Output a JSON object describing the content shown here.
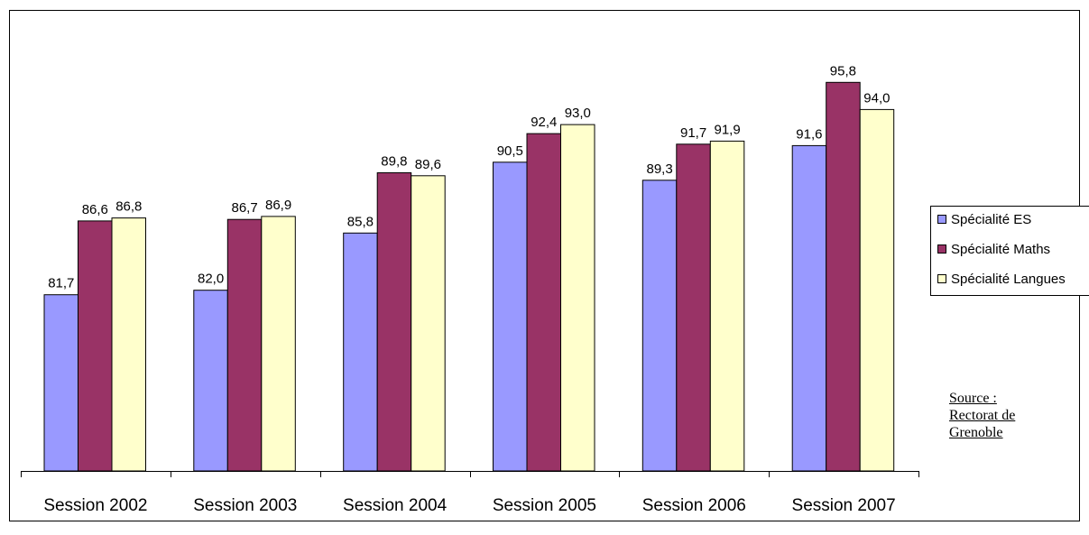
{
  "chart_data": {
    "type": "bar",
    "categories": [
      "Session 2002",
      "Session 2003",
      "Session 2004",
      "Session 2005",
      "Session 2006",
      "Session 2007"
    ],
    "series": [
      {
        "name": "Spécialité ES",
        "color": "#9999FF",
        "values": [
          81.7,
          82.0,
          85.8,
          90.5,
          89.3,
          91.6
        ],
        "labels": [
          "81,7",
          "82,0",
          "85,8",
          "90,5",
          "89,3",
          "91,6"
        ]
      },
      {
        "name": "Spécialité Maths",
        "color": "#993366",
        "values": [
          86.6,
          86.7,
          89.8,
          92.4,
          91.7,
          95.8
        ],
        "labels": [
          "86,6",
          "86,7",
          "89,8",
          "92,4",
          "91,7",
          "95,8"
        ]
      },
      {
        "name": "Spécialité Langues",
        "color": "#FFFFCC",
        "values": [
          86.8,
          86.9,
          89.6,
          93.0,
          91.9,
          94.0
        ],
        "labels": [
          "86,8",
          "86,9",
          "89,6",
          "93,0",
          "91,9",
          "94,0"
        ]
      }
    ],
    "grid": false,
    "legend_position": "right",
    "source": [
      "Source :",
      "Rectorat de",
      "Grenoble"
    ]
  }
}
